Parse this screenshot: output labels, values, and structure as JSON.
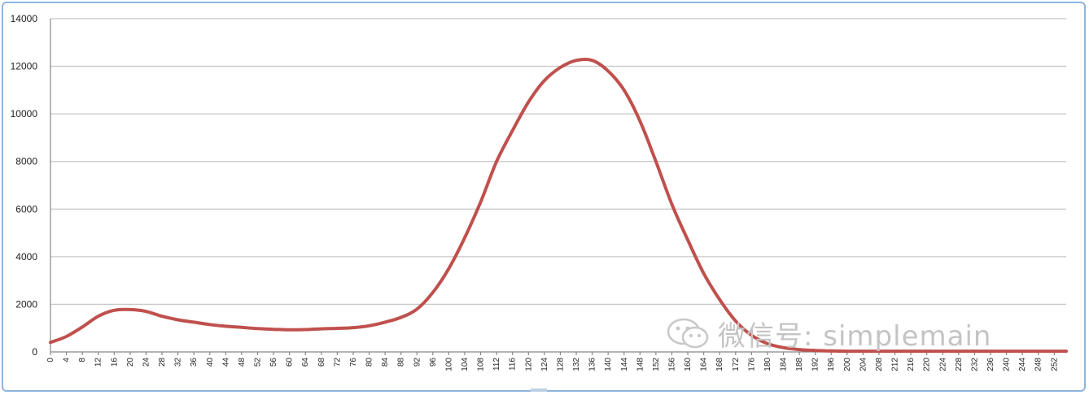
{
  "chart_data": {
    "type": "line",
    "title": "",
    "xlabel": "",
    "ylabel": "",
    "ylim": [
      0,
      14000
    ],
    "yticks": [
      0,
      2000,
      4000,
      6000,
      8000,
      10000,
      12000,
      14000
    ],
    "xlim": [
      0,
      255
    ],
    "xtick_labels": [
      "0",
      "4",
      "8",
      "12",
      "16",
      "20",
      "24",
      "28",
      "32",
      "36",
      "40",
      "44",
      "48",
      "52",
      "56",
      "60",
      "64",
      "68",
      "72",
      "76",
      "80",
      "84",
      "88",
      "92",
      "96",
      "100",
      "104",
      "108",
      "112",
      "116",
      "120",
      "124",
      "128",
      "132",
      "136",
      "140",
      "144",
      "148",
      "152",
      "156",
      "160",
      "164",
      "168",
      "172",
      "176",
      "180",
      "184",
      "188",
      "192",
      "196",
      "200",
      "204",
      "208",
      "212",
      "216",
      "220",
      "224",
      "228",
      "232",
      "236",
      "240",
      "244",
      "248",
      "252"
    ],
    "grid": "horizontal",
    "legend": "none",
    "series": [
      {
        "color": "#c0504d",
        "x": [
          0,
          4,
          8,
          12,
          16,
          20,
          24,
          28,
          32,
          36,
          40,
          44,
          48,
          52,
          56,
          60,
          64,
          68,
          72,
          76,
          80,
          84,
          88,
          92,
          96,
          100,
          104,
          108,
          112,
          116,
          120,
          124,
          128,
          132,
          136,
          140,
          144,
          148,
          152,
          156,
          160,
          164,
          168,
          172,
          176,
          180,
          184,
          188,
          192,
          196,
          200,
          204,
          208,
          212,
          216,
          220,
          224,
          228,
          232,
          236,
          240,
          244,
          248,
          252,
          255
        ],
        "y": [
          400,
          650,
          1050,
          1500,
          1750,
          1780,
          1700,
          1500,
          1350,
          1250,
          1150,
          1080,
          1030,
          980,
          950,
          930,
          940,
          970,
          990,
          1020,
          1100,
          1250,
          1450,
          1800,
          2500,
          3500,
          4800,
          6300,
          8000,
          9300,
          10500,
          11400,
          11950,
          12250,
          12250,
          11800,
          11000,
          9700,
          8000,
          6200,
          4700,
          3300,
          2200,
          1300,
          700,
          350,
          180,
          100,
          60,
          40,
          30,
          30,
          30,
          30,
          30,
          30,
          30,
          30,
          30,
          30,
          30,
          30,
          30,
          30,
          30
        ]
      }
    ]
  },
  "watermark": {
    "icon": "wechat-icon",
    "text": "微信号: simplemain"
  },
  "colors": {
    "frame_border": "#8fb4dc",
    "gridline": "#c8c8c8",
    "series": "#c0504d"
  }
}
